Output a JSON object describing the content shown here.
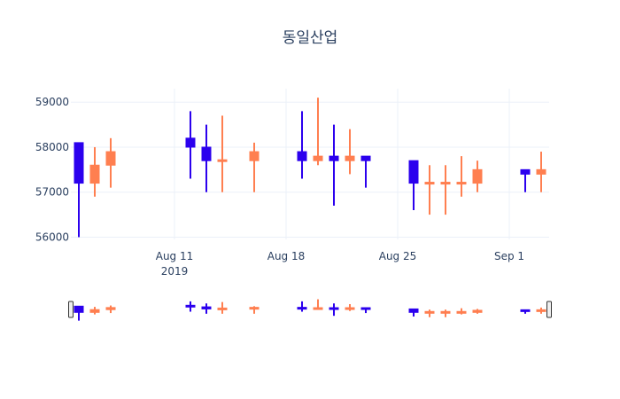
{
  "chart_data": {
    "type": "candlestick",
    "title": "동일산업",
    "xlabel": "",
    "ylabel": "",
    "x_tick_labels": [
      {
        "date": "2019-08-11",
        "line1": "Aug 11",
        "line2": "2019"
      },
      {
        "date": "2019-08-18",
        "line1": "Aug 18",
        "line2": ""
      },
      {
        "date": "2019-08-25",
        "line1": "Aug 25",
        "line2": ""
      },
      {
        "date": "2019-09-01",
        "line1": "Sep 1",
        "line2": ""
      }
    ],
    "y_ticks": [
      56000,
      57000,
      58000,
      59000
    ],
    "y_tick_labels": [
      "56000",
      "57000",
      "58000",
      "59000"
    ],
    "xlim": [
      "2019-08-05",
      "2019-09-03"
    ],
    "ylim": [
      55950,
      59300
    ],
    "grid": true,
    "rangeslider": true,
    "colors": {
      "increasing": "#ff7f50",
      "decreasing": "#2b00ee",
      "text": "#2a3f5f",
      "grid": "#ebf0f8"
    },
    "candles": [
      {
        "date": "2019-08-05",
        "open": 58100,
        "high": 58100,
        "low": 56000,
        "close": 57200
      },
      {
        "date": "2019-08-06",
        "open": 57200,
        "high": 58000,
        "low": 56900,
        "close": 57600
      },
      {
        "date": "2019-08-07",
        "open": 57600,
        "high": 58200,
        "low": 57100,
        "close": 57900
      },
      {
        "date": "2019-08-12",
        "open": 58200,
        "high": 58800,
        "low": 57300,
        "close": 58000
      },
      {
        "date": "2019-08-13",
        "open": 58000,
        "high": 58500,
        "low": 57000,
        "close": 57700
      },
      {
        "date": "2019-08-14",
        "open": 57700,
        "high": 58700,
        "low": 57000,
        "close": 57700
      },
      {
        "date": "2019-08-16",
        "open": 57700,
        "high": 58100,
        "low": 57000,
        "close": 57900
      },
      {
        "date": "2019-08-19",
        "open": 57900,
        "high": 58800,
        "low": 57300,
        "close": 57700
      },
      {
        "date": "2019-08-20",
        "open": 57700,
        "high": 59100,
        "low": 57600,
        "close": 57800
      },
      {
        "date": "2019-08-21",
        "open": 57800,
        "high": 58500,
        "low": 56700,
        "close": 57700
      },
      {
        "date": "2019-08-22",
        "open": 57700,
        "high": 58400,
        "low": 57400,
        "close": 57800
      },
      {
        "date": "2019-08-23",
        "open": 57800,
        "high": 57800,
        "low": 57100,
        "close": 57700
      },
      {
        "date": "2019-08-26",
        "open": 57700,
        "high": 57700,
        "low": 56600,
        "close": 57200
      },
      {
        "date": "2019-08-27",
        "open": 57200,
        "high": 57600,
        "low": 56500,
        "close": 57200
      },
      {
        "date": "2019-08-28",
        "open": 57200,
        "high": 57600,
        "low": 56500,
        "close": 57200
      },
      {
        "date": "2019-08-29",
        "open": 57200,
        "high": 57800,
        "low": 56900,
        "close": 57200
      },
      {
        "date": "2019-08-30",
        "open": 57200,
        "high": 57700,
        "low": 57000,
        "close": 57500
      },
      {
        "date": "2019-09-02",
        "open": 57500,
        "high": 57500,
        "low": 57000,
        "close": 57400
      },
      {
        "date": "2019-09-03",
        "open": 57400,
        "high": 57900,
        "low": 57000,
        "close": 57500
      }
    ]
  }
}
